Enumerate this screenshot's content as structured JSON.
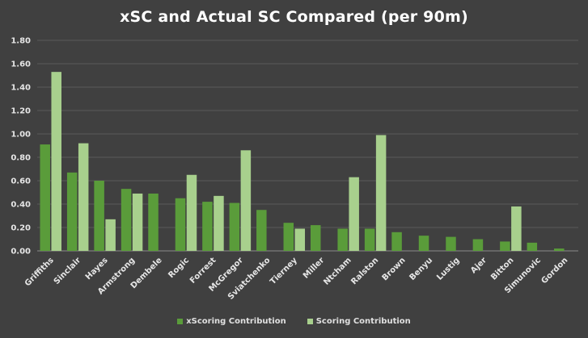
{
  "chart_data": {
    "type": "bar",
    "title": "xSC and Actual SC Compared (per 90m)",
    "xlabel": "",
    "ylabel": "",
    "ylim": [
      0,
      1.8
    ],
    "yticks": [
      "0.00",
      "0.20",
      "0.40",
      "0.60",
      "0.80",
      "1.00",
      "1.20",
      "1.40",
      "1.60",
      "1.80"
    ],
    "grid": true,
    "legend_position": "bottom",
    "categories": [
      "Griffiths",
      "Sinclair",
      "Hayes",
      "Armstrong",
      "Dembele",
      "Rogic",
      "Forrest",
      "McGregor",
      "Sviatchenko",
      "Tierney",
      "Miller",
      "Ntcham",
      "Ralston",
      "Brown",
      "Benyu",
      "Lustig",
      "Ajer",
      "Bitton",
      "Simunovic",
      "Gordon"
    ],
    "series": [
      {
        "name": "xScoring Contribution",
        "color": "#5a9c3a",
        "values": [
          0.91,
          0.67,
          0.6,
          0.53,
          0.49,
          0.45,
          0.42,
          0.41,
          0.35,
          0.24,
          0.22,
          0.19,
          0.19,
          0.16,
          0.13,
          0.12,
          0.1,
          0.08,
          0.07,
          0.02
        ]
      },
      {
        "name": "Scoring Contribution",
        "color": "#a8d08d",
        "values": [
          1.53,
          0.92,
          0.27,
          0.49,
          0,
          0.65,
          0.47,
          0.86,
          0,
          0.19,
          0,
          0.63,
          0.99,
          0,
          0,
          0,
          0,
          0.38,
          0,
          0
        ]
      }
    ]
  }
}
